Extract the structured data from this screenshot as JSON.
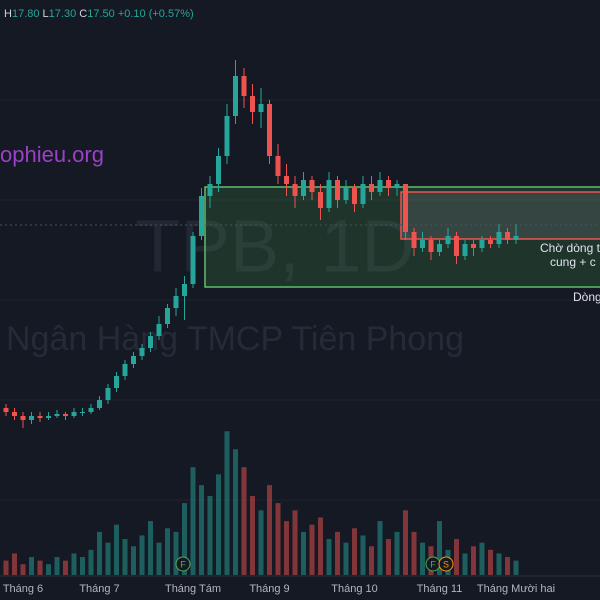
{
  "header": {
    "high_label": "H",
    "high": "17.80",
    "low_label": "L",
    "low": "17.30",
    "close_label": "C",
    "close": "17.50",
    "change": "+0.10 (+0.57%)"
  },
  "watermark": {
    "symbol": "TPB, 1D",
    "company": "Ngân Hàng TMCP Tiên Phong",
    "site": "ophieu.org"
  },
  "annotations": {
    "note_line1": "Chờ dòng t",
    "note_line2": "cung + c",
    "note_line3": "Dòng"
  },
  "markers": [
    {
      "label": "F"
    },
    {
      "label": "F"
    },
    {
      "label": "S"
    }
  ],
  "chart_data": {
    "type": "candlestick",
    "categories": [
      null,
      null,
      "Tháng 6",
      null,
      null,
      null,
      null,
      null,
      null,
      null,
      null,
      "Tháng 7",
      null,
      null,
      null,
      null,
      null,
      null,
      null,
      null,
      null,
      null,
      "Tháng Tám",
      null,
      null,
      null,
      null,
      null,
      null,
      null,
      null,
      "Tháng 9",
      null,
      null,
      null,
      null,
      null,
      null,
      null,
      null,
      null,
      "Tháng 10",
      null,
      null,
      null,
      null,
      null,
      null,
      null,
      null,
      null,
      "Tháng 11",
      null,
      null,
      null,
      null,
      null,
      null,
      null,
      null,
      "Tháng Mười hai"
    ],
    "open": [
      13.2,
      13.1,
      13.0,
      12.9,
      13.0,
      12.95,
      13.0,
      13.05,
      13.0,
      13.1,
      13.1,
      13.2,
      13.4,
      13.7,
      14.0,
      14.3,
      14.5,
      14.7,
      15.0,
      15.3,
      15.7,
      16.0,
      16.3,
      17.5,
      18.5,
      18.8,
      19.5,
      20.5,
      21.5,
      21.0,
      20.6,
      20.8,
      19.5,
      19.0,
      18.8,
      18.5,
      18.9,
      18.6,
      18.2,
      18.9,
      18.4,
      18.7,
      18.3,
      18.8,
      18.6,
      18.9,
      18.7,
      18.8,
      17.6,
      17.2,
      17.4,
      17.1,
      17.3,
      17.5,
      17.0,
      17.3,
      17.2,
      17.4,
      17.3,
      17.6,
      17.4
    ],
    "high": [
      13.3,
      13.2,
      13.1,
      13.1,
      13.1,
      13.1,
      13.15,
      13.1,
      13.2,
      13.2,
      13.3,
      13.5,
      13.8,
      14.1,
      14.4,
      14.6,
      14.8,
      15.1,
      15.5,
      15.8,
      16.2,
      16.5,
      17.6,
      18.7,
      19.0,
      19.7,
      20.8,
      21.9,
      21.7,
      21.3,
      21.2,
      20.9,
      19.8,
      19.3,
      19.0,
      19.1,
      19.0,
      18.8,
      19.1,
      19.0,
      18.9,
      18.8,
      19.0,
      19.0,
      19.1,
      19.0,
      18.9,
      18.8,
      17.7,
      17.6,
      17.5,
      17.4,
      17.7,
      17.6,
      17.4,
      17.4,
      17.5,
      17.5,
      17.8,
      17.7,
      17.8
    ],
    "low": [
      13.0,
      12.9,
      12.7,
      12.8,
      12.85,
      12.9,
      12.95,
      12.9,
      12.95,
      13.0,
      13.05,
      13.15,
      13.3,
      13.6,
      13.9,
      14.2,
      14.4,
      14.6,
      14.9,
      15.2,
      15.5,
      15.4,
      16.2,
      17.4,
      18.2,
      18.6,
      19.3,
      20.3,
      20.7,
      20.3,
      20.2,
      19.3,
      18.8,
      18.5,
      18.2,
      18.4,
      18.4,
      17.9,
      18.1,
      18.2,
      18.3,
      18.1,
      18.2,
      18.4,
      18.5,
      18.5,
      18.5,
      17.4,
      17.0,
      17.1,
      16.9,
      17.0,
      17.2,
      16.8,
      16.9,
      17.0,
      17.1,
      17.2,
      17.2,
      17.3,
      17.3
    ],
    "close": [
      13.1,
      13.0,
      12.9,
      13.0,
      12.95,
      13.0,
      13.05,
      13.0,
      13.1,
      13.1,
      13.2,
      13.4,
      13.7,
      14.0,
      14.3,
      14.5,
      14.7,
      15.0,
      15.3,
      15.7,
      16.0,
      16.3,
      17.5,
      18.5,
      18.8,
      19.5,
      20.5,
      21.5,
      21.0,
      20.6,
      20.8,
      19.5,
      19.0,
      18.8,
      18.5,
      18.9,
      18.6,
      18.2,
      18.9,
      18.4,
      18.7,
      18.3,
      18.8,
      18.6,
      18.9,
      18.7,
      18.8,
      17.6,
      17.2,
      17.4,
      17.1,
      17.3,
      17.5,
      17.0,
      17.3,
      17.2,
      17.4,
      17.3,
      17.6,
      17.4,
      17.5
    ],
    "volume": [
      4,
      6,
      3,
      5,
      4,
      3,
      5,
      4,
      6,
      5,
      7,
      12,
      9,
      14,
      10,
      8,
      11,
      15,
      9,
      13,
      12,
      20,
      30,
      25,
      22,
      28,
      40,
      35,
      30,
      22,
      18,
      25,
      20,
      15,
      18,
      12,
      14,
      16,
      10,
      12,
      9,
      13,
      11,
      8,
      15,
      10,
      12,
      18,
      12,
      9,
      8,
      15,
      7,
      10,
      6,
      8,
      9,
      7,
      6,
      5,
      4
    ],
    "up_color": "#26a69a",
    "down_color": "#ef5350",
    "ylim": [
      9,
      23.4
    ],
    "volume_lim": [
      0,
      160
    ]
  }
}
